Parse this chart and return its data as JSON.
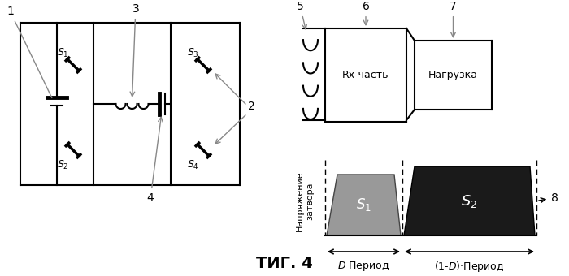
{
  "fig_width": 7.0,
  "fig_height": 3.4,
  "dpi": 100,
  "bg_color": "#ffffff",
  "rx_text": "Rx-часть",
  "load_text": "Нагрузка",
  "ylabel": "Напряжение\nзатвора",
  "xlabel1": "D·Период",
  "xlabel2": "(1-D)·Период",
  "fig_label": "ΤИГ. 4"
}
